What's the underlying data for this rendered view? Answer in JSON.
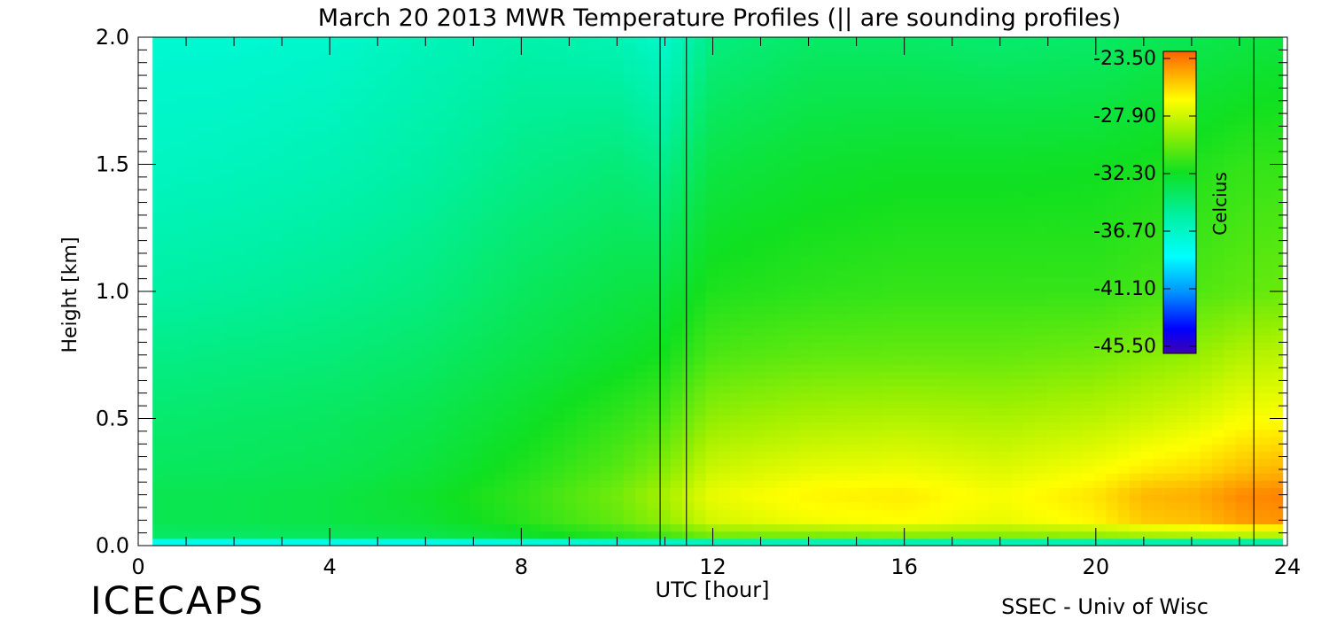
{
  "chart_data": {
    "type": "heatmap",
    "title": "March 20 2013 MWR Temperature Profiles (|| are sounding profiles)",
    "xlabel": "UTC [hour]",
    "ylabel": "Height [km]",
    "xlim": [
      0,
      24
    ],
    "ylim": [
      0,
      2.0
    ],
    "x_ticks": [
      "0",
      "4",
      "8",
      "12",
      "16",
      "20",
      "24"
    ],
    "y_ticks": [
      "0.0",
      "0.5",
      "1.0",
      "1.5",
      "2.0"
    ],
    "colorbar": {
      "label": "Celcius",
      "ticks": [
        "-23.50",
        "-27.90",
        "-32.30",
        "-36.70",
        "-41.10",
        "-45.50"
      ],
      "range": [
        -45.5,
        -23.5
      ]
    },
    "sounding_times_utc": [
      10.9,
      11.45,
      23.3
    ],
    "data_start_utc": 0.3,
    "data_end_utc": 23.9,
    "profile_hours": [
      0,
      2,
      4,
      6,
      8,
      10,
      11,
      12,
      14,
      16,
      18,
      20,
      21,
      22,
      23,
      24
    ],
    "profile_heights_km": [
      0.0,
      0.03,
      0.1,
      0.2,
      0.3,
      0.5,
      0.75,
      1.0,
      1.5,
      2.0
    ],
    "temperature_c": [
      [
        -41,
        -34.0,
        -33.5,
        -33.5,
        -33.8,
        -34.2,
        -34.8,
        -35.5,
        -36.5,
        -37.0
      ],
      [
        -41,
        -34.0,
        -33.4,
        -33.4,
        -33.7,
        -34.0,
        -34.6,
        -35.3,
        -36.3,
        -37.0
      ],
      [
        -41,
        -33.8,
        -33.2,
        -33.2,
        -33.5,
        -33.8,
        -34.4,
        -35.0,
        -36.0,
        -36.8
      ],
      [
        -41,
        -33.5,
        -32.8,
        -32.6,
        -33.0,
        -33.4,
        -34.0,
        -34.6,
        -35.5,
        -36.2
      ],
      [
        -41,
        -32.8,
        -31.8,
        -31.6,
        -32.0,
        -32.6,
        -33.3,
        -33.8,
        -34.8,
        -35.7
      ],
      [
        -41,
        -32.0,
        -30.5,
        -30.2,
        -30.8,
        -31.6,
        -32.6,
        -33.2,
        -34.4,
        -36.0
      ],
      [
        -41,
        -31.5,
        -29.5,
        -29.0,
        -29.8,
        -31.0,
        -32.2,
        -33.0,
        -34.8,
        -36.8
      ],
      [
        -41,
        -30.5,
        -28.0,
        -27.5,
        -28.2,
        -29.5,
        -31.0,
        -32.0,
        -33.2,
        -34.6
      ],
      [
        -41,
        -30.5,
        -27.3,
        -26.8,
        -27.6,
        -29.0,
        -30.6,
        -31.7,
        -32.7,
        -34.0
      ],
      [
        -41,
        -30.2,
        -27.0,
        -26.6,
        -27.4,
        -28.8,
        -30.5,
        -31.5,
        -32.5,
        -34.0
      ],
      [
        -41,
        -30.2,
        -27.5,
        -27.2,
        -27.8,
        -29.0,
        -30.5,
        -31.5,
        -32.5,
        -34.2
      ],
      [
        -41,
        -30.0,
        -26.8,
        -26.4,
        -27.2,
        -28.6,
        -30.2,
        -31.5,
        -32.4,
        -34.0
      ],
      [
        -41,
        -29.8,
        -25.8,
        -25.4,
        -26.6,
        -28.2,
        -29.8,
        -31.2,
        -32.2,
        -33.6
      ],
      [
        -41,
        -29.6,
        -25.6,
        -25.2,
        -26.3,
        -27.8,
        -29.5,
        -31.0,
        -32.0,
        -33.5
      ],
      [
        -41,
        -29.5,
        -24.8,
        -24.4,
        -25.6,
        -27.2,
        -28.8,
        -30.6,
        -31.6,
        -33.2
      ],
      [
        -41,
        -29.5,
        -24.6,
        -24.2,
        -25.3,
        -27.0,
        -28.6,
        -30.4,
        -31.5,
        -33.0
      ]
    ]
  },
  "footer": {
    "logo": "ICECAPS",
    "credit": "SSEC - Univ of Wisc"
  }
}
